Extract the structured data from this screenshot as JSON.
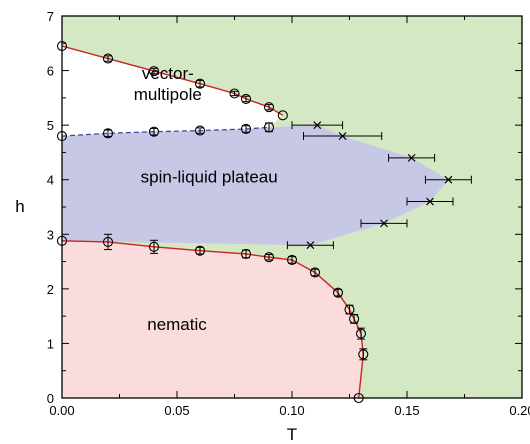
{
  "chart_data": {
    "type": "scatter",
    "xlabel": "T",
    "ylabel": "h",
    "xlim": [
      0,
      0.2
    ],
    "ylim": [
      0,
      7
    ],
    "x_ticks": [
      0.0,
      0.05,
      0.1,
      0.15,
      0.2
    ],
    "x_tick_labels": [
      "0.00",
      "0.05",
      "0.10",
      "0.15",
      "0.20"
    ],
    "y_ticks": [
      0,
      1,
      2,
      3,
      4,
      5,
      6,
      7
    ],
    "y_tick_labels": [
      "0",
      "1",
      "2",
      "3",
      "4",
      "5",
      "6",
      "7"
    ],
    "colors": {
      "background_phase": "#d5e8c4",
      "vector": "#ffffff",
      "plateau": "#c7c8e6",
      "nematic": "#fadcdc",
      "boundary": "#cc2222",
      "dashed": "#4a4a9a",
      "marker": "#000000"
    },
    "region_labels": [
      {
        "id": "vector",
        "lines": [
          "vector-",
          "multipole"
        ],
        "anchor": [
          0.046,
          5.85
        ]
      },
      {
        "id": "plateau",
        "lines": [
          "spin-liquid plateau"
        ],
        "anchor": [
          0.064,
          3.95
        ]
      },
      {
        "id": "nematic",
        "lines": [
          "nematic"
        ],
        "anchor": [
          0.05,
          1.25
        ]
      }
    ],
    "series": [
      {
        "marker": "circle",
        "role": "upper vector-multipole boundary",
        "points": [
          [
            0.0,
            6.45,
            0
          ],
          [
            0.02,
            6.22,
            0.05
          ],
          [
            0.04,
            5.99,
            0.05
          ],
          [
            0.06,
            5.76,
            0.06
          ],
          [
            0.075,
            5.58,
            0.04
          ],
          [
            0.08,
            5.48,
            0.05
          ],
          [
            0.09,
            5.33,
            0.05
          ],
          [
            0.096,
            5.18,
            0
          ]
        ]
      },
      {
        "marker": "circle",
        "role": "lower vector-multipole boundary",
        "points": [
          [
            0.0,
            4.8,
            0
          ],
          [
            0.02,
            4.85,
            0.06
          ],
          [
            0.04,
            4.88,
            0.06
          ],
          [
            0.06,
            4.9,
            0.05
          ],
          [
            0.08,
            4.93,
            0.06
          ],
          [
            0.09,
            4.96,
            0.08
          ]
        ]
      },
      {
        "marker": "cross",
        "role": "spin-liquid plateau crossover",
        "points": [
          [
            0.111,
            5.0,
            0.011
          ],
          [
            0.122,
            4.8,
            0.017
          ],
          [
            0.152,
            4.4,
            0.01
          ],
          [
            0.168,
            4.0,
            0.01
          ],
          [
            0.16,
            3.6,
            0.01
          ],
          [
            0.14,
            3.2,
            0.01
          ],
          [
            0.108,
            2.8,
            0.01
          ]
        ]
      },
      {
        "marker": "circle",
        "role": "nematic boundary",
        "points": [
          [
            0.0,
            2.88,
            0
          ],
          [
            0.02,
            2.86,
            0.14
          ],
          [
            0.04,
            2.77,
            0.12
          ],
          [
            0.06,
            2.7,
            0.06
          ],
          [
            0.08,
            2.64,
            0.07
          ],
          [
            0.09,
            2.58,
            0.05
          ],
          [
            0.1,
            2.53,
            0.06
          ],
          [
            0.11,
            2.3,
            0.06
          ],
          [
            0.12,
            1.93,
            0.06
          ],
          [
            0.125,
            1.62,
            0.08
          ],
          [
            0.127,
            1.45,
            0.08
          ],
          [
            0.13,
            1.18,
            0.1
          ],
          [
            0.131,
            0.8,
            0.1
          ],
          [
            0.129,
            0.0,
            0
          ]
        ]
      }
    ]
  }
}
